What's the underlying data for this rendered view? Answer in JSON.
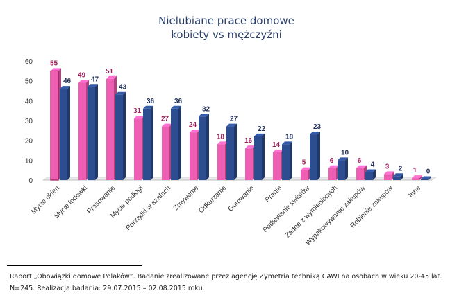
{
  "chart_data": {
    "type": "bar",
    "title_lines": [
      "Nielubiane prace domowe",
      "kobiety vs mężczyźni"
    ],
    "categories": [
      "Mycie okien",
      "Mycie lodówki",
      "Prasowanie",
      "Mycie podłogi",
      "Porządki w szafach",
      "Zmywanie",
      "Odkurzanie",
      "Gotowanie",
      "Pranie",
      "Podlewanie kwiatów",
      "Żadne z wymienionych",
      "Wypakowywanie zakupów",
      "Robienie zakupów",
      "Inne"
    ],
    "series": [
      {
        "values": [
          55,
          49,
          51,
          31,
          27,
          24,
          18,
          16,
          14,
          5,
          6,
          6,
          3,
          1
        ],
        "color": "#ee5fb3"
      },
      {
        "values": [
          46,
          47,
          43,
          36,
          36,
          32,
          27,
          22,
          18,
          23,
          10,
          4,
          2,
          0
        ],
        "color": "#2c4d8f"
      }
    ],
    "ylim": [
      0,
      60
    ],
    "yticks": [
      0,
      10,
      20,
      30,
      40,
      50,
      60
    ],
    "grid": false,
    "legend": "none"
  },
  "footer": {
    "line1": "Raport „Obowiązki domowe Polaków”. Badanie zrealizowane przez agencję Zymetria techniką CAWI na osobach w wieku 20-45 lat.",
    "line2": "N=245. Realizacja badania: 29.07.2015 – 02.08.2015 roku."
  }
}
